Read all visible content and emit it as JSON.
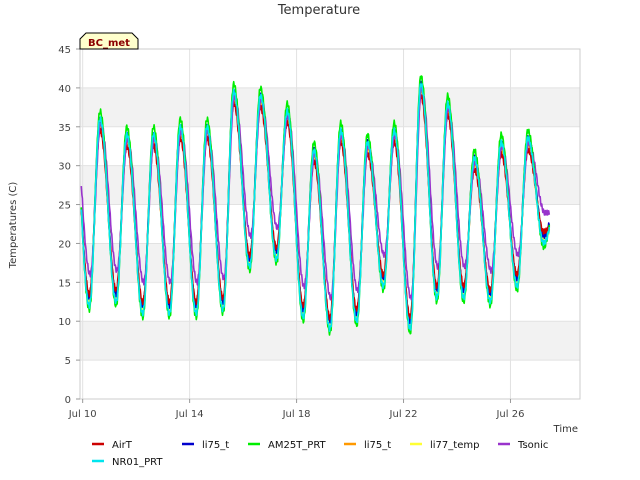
{
  "chart_data": {
    "type": "line",
    "title": "Temperature",
    "xlabel": "Time",
    "ylabel": "Temperatures (C)",
    "badge": "BC_met",
    "ylim": [
      0,
      45
    ],
    "yticks": [
      0,
      5,
      10,
      15,
      20,
      25,
      30,
      35,
      40,
      45
    ],
    "x_range_days": [
      9.9,
      28.6
    ],
    "x_ticks": [
      {
        "label": "Jul 10",
        "day": 10
      },
      {
        "label": "Jul 14",
        "day": 14
      },
      {
        "label": "Jul 18",
        "day": 18
      },
      {
        "label": "Jul 22",
        "day": 22
      },
      {
        "label": "Jul 26",
        "day": 26
      }
    ],
    "grid": true,
    "legend_position": "bottom",
    "daily": [
      {
        "day": 10,
        "min": 12.0,
        "max": 37.0
      },
      {
        "day": 11,
        "min": 12.5,
        "max": 35.0
      },
      {
        "day": 12,
        "min": 11.0,
        "max": 35.0
      },
      {
        "day": 13,
        "min": 11.0,
        "max": 36.0
      },
      {
        "day": 14,
        "min": 11.0,
        "max": 36.0
      },
      {
        "day": 15,
        "min": 11.5,
        "max": 40.5
      },
      {
        "day": 16,
        "min": 17.0,
        "max": 40.0
      },
      {
        "day": 17,
        "min": 18.0,
        "max": 38.0
      },
      {
        "day": 18,
        "min": 10.5,
        "max": 33.0
      },
      {
        "day": 19,
        "min": 9.0,
        "max": 35.5
      },
      {
        "day": 20,
        "min": 10.0,
        "max": 34.0
      },
      {
        "day": 21,
        "min": 14.5,
        "max": 35.5
      },
      {
        "day": 22,
        "min": 9.0,
        "max": 41.5
      },
      {
        "day": 23,
        "min": 13.0,
        "max": 39.0
      },
      {
        "day": 24,
        "min": 13.0,
        "max": 32.0
      },
      {
        "day": 25,
        "min": 12.5,
        "max": 34.0
      },
      {
        "day": 26,
        "min": 14.5,
        "max": 34.5
      },
      {
        "day": 27,
        "min": 20.0,
        "max": 25.0
      }
    ],
    "series": [
      {
        "name": "AirT",
        "color": "#cc0000",
        "min_offset": 1.5,
        "max_offset": -2.5,
        "phase": 0.0
      },
      {
        "name": "li75_t",
        "color": "#0000cc",
        "min_offset": 1.0,
        "max_offset": -1.0,
        "phase": 0.0
      },
      {
        "name": "AM25T_PRT",
        "color": "#00ee00",
        "min_offset": -0.5,
        "max_offset": 0.0,
        "phase": 0.0
      },
      {
        "name": "li75_t",
        "color": "#ff9900",
        "min_offset": 1.0,
        "max_offset": -1.5,
        "phase": 0.0
      },
      {
        "name": "li77_temp",
        "color": "#ffff33",
        "min_offset": 0.5,
        "max_offset": -2.0,
        "phase": 0.0
      },
      {
        "name": "Tsonic",
        "color": "#9933cc",
        "min_offset": 4.0,
        "max_offset": -1.5,
        "phase": 0.03
      },
      {
        "name": "NR01_PRT",
        "color": "#00e5ee",
        "min_offset": 0.0,
        "max_offset": -1.0,
        "phase": 0.0
      }
    ],
    "legend_rows": [
      [
        "AirT",
        "li75_t",
        "AM25T_PRT",
        "li75_t",
        "li77_temp",
        "Tsonic"
      ],
      [
        "NR01_PRT"
      ]
    ]
  }
}
